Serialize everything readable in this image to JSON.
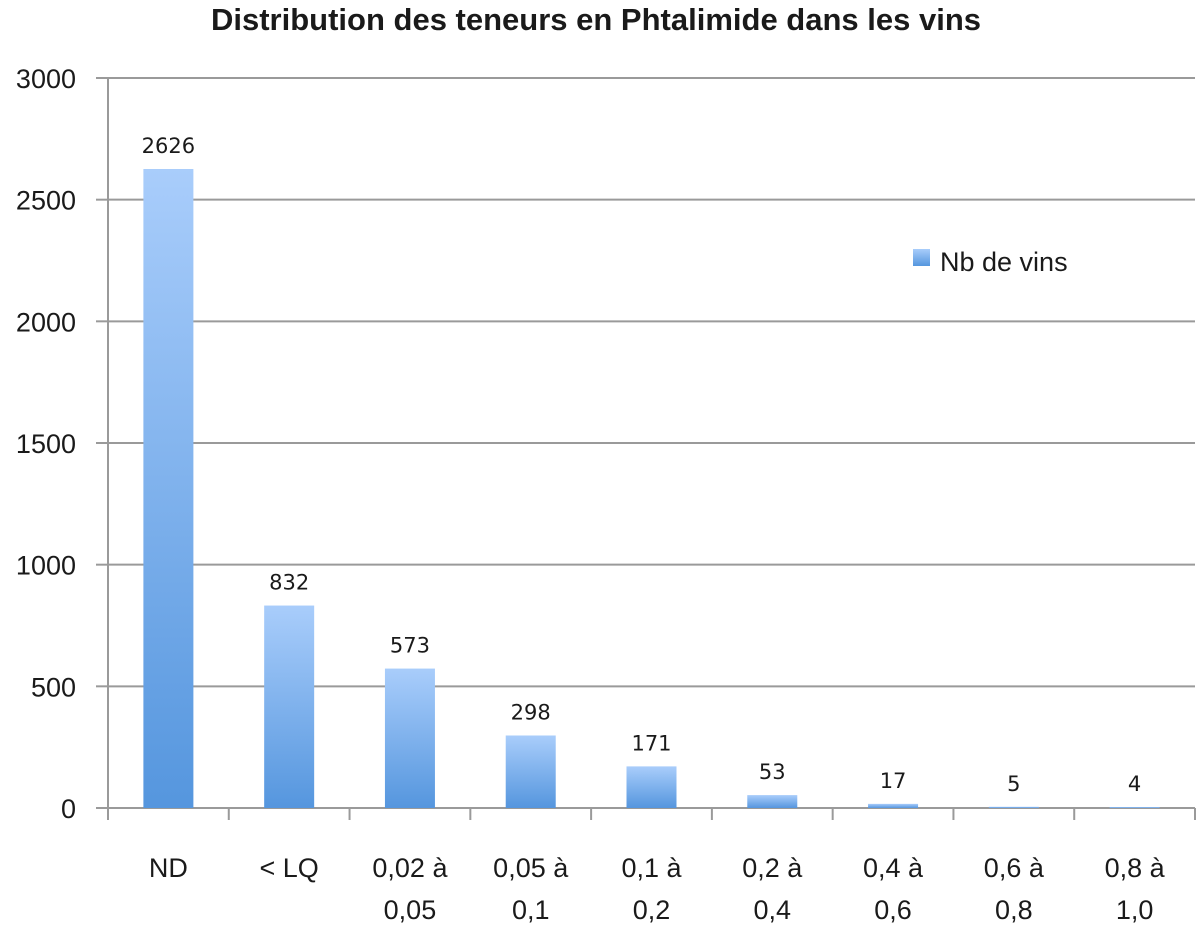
{
  "chart_data": {
    "type": "bar",
    "title": "Distribution des teneurs en Phtalimide dans les vins",
    "categories": [
      [
        "ND"
      ],
      [
        "< LQ"
      ],
      [
        "0,02 à",
        "0,05"
      ],
      [
        "0,05 à",
        "0,1"
      ],
      [
        "0,1 à",
        "0,2"
      ],
      [
        "0,2 à",
        "0,4"
      ],
      [
        "0,4 à",
        "0,6"
      ],
      [
        "0,6 à",
        "0,8"
      ],
      [
        "0,8 à",
        "1,0"
      ]
    ],
    "series": [
      {
        "name": "Nb de vins",
        "values": [
          2626,
          832,
          573,
          298,
          171,
          53,
          17,
          5,
          4
        ],
        "labels": [
          "2626",
          "832",
          "573",
          "298",
          "171",
          "53",
          "17",
          "5",
          "4"
        ]
      }
    ],
    "yticks": [
      0,
      500,
      1000,
      1500,
      2000,
      2500,
      3000
    ],
    "ylim": [
      0,
      3000
    ],
    "grid": true,
    "legend_position": "right",
    "colors": {
      "bar_top": "#a9cdfb",
      "bar_bottom": "#5596de",
      "grid": "#9a9a9a"
    }
  }
}
